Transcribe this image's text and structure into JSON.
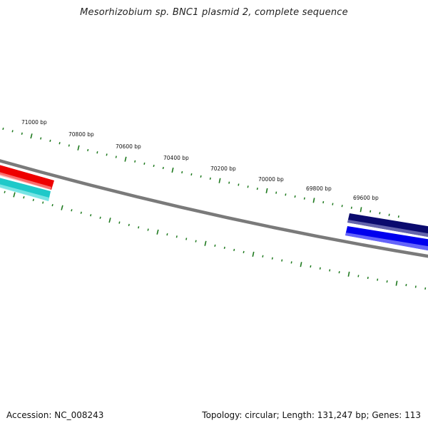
{
  "title": "Mesorhizobium sp. BNC1 plasmid 2, complete sequence",
  "footer": {
    "accession": "Accession: NC_008243",
    "stats": "Topology: circular; Length: 131,247 bp; Genes: 113"
  },
  "ruler": {
    "labels": [
      "71000 bp",
      "70800 bp",
      "70600 bp",
      "70400 bp",
      "70200 bp",
      "70000 bp",
      "69800 bp",
      "69600 bp"
    ]
  },
  "colors": {
    "backbone": "#7a7a7a",
    "ticks": "#1f7a1f",
    "gene_red": "#ee0000",
    "gene_cyan": "#1fc9c9",
    "gene_navy": "#0a0a6e",
    "gene_blue": "#0000ee"
  }
}
